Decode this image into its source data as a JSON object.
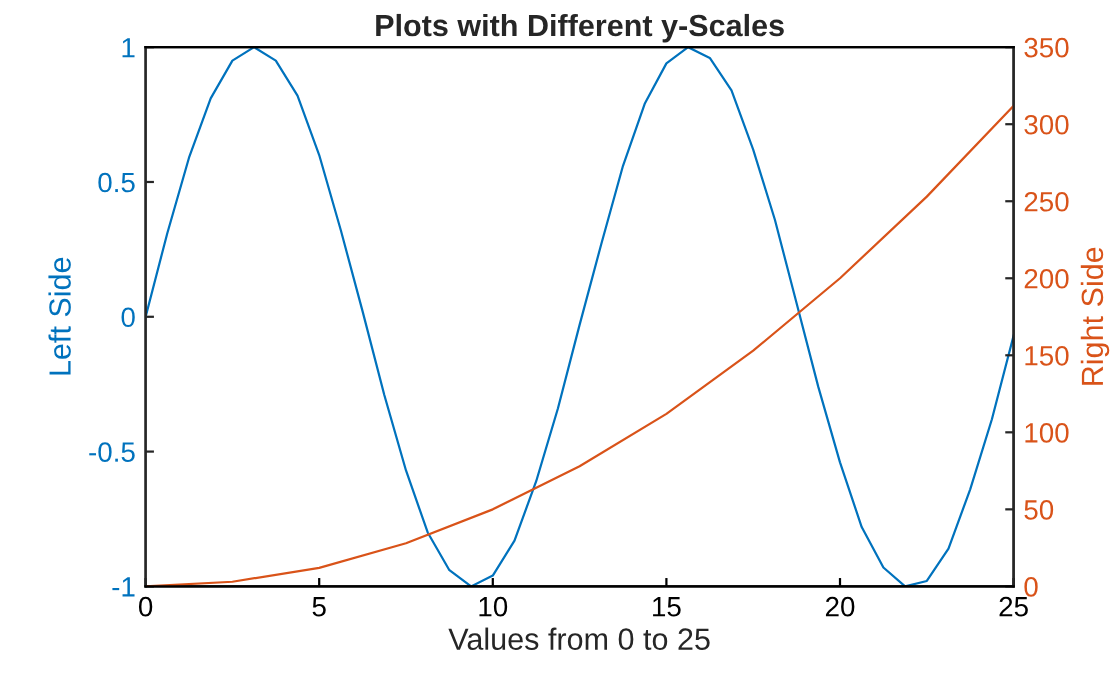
{
  "chart_data": {
    "type": "line",
    "title": "Plots with Different y-Scales",
    "xlabel": "Values from 0 to 25",
    "ylabel": "Left Side",
    "y2label": "Right Side",
    "xlim": [
      0,
      25
    ],
    "xticks": [
      0,
      5,
      10,
      15,
      20,
      25
    ],
    "ylim": [
      -1,
      1
    ],
    "yticks": [
      -1,
      -0.5,
      0,
      0.5,
      1
    ],
    "y2lim": [
      0,
      350
    ],
    "y2ticks": [
      0,
      50,
      100,
      150,
      200,
      250,
      300,
      350
    ],
    "grid": false,
    "legend": false,
    "marker": "none",
    "line_style": "solid",
    "series": [
      {
        "color": "#0072bd",
        "x": [
          0,
          0.625,
          1.25,
          1.875,
          2.5,
          3.125,
          3.75,
          4.375,
          5,
          5.625,
          6.25,
          6.875,
          7.5,
          8.125,
          8.75,
          9.375,
          10,
          10.625,
          11.25,
          11.875,
          12.5,
          13.125,
          13.75,
          14.375,
          15,
          15.625,
          16.25,
          16.875,
          17.5,
          18.125,
          18.75,
          19.375,
          20,
          20.625,
          21.25,
          21.875,
          22.5,
          23.125,
          23.75,
          24.375,
          25
        ],
        "values": [
          0,
          0.31,
          0.59,
          0.81,
          0.95,
          1.0,
          0.95,
          0.82,
          0.6,
          0.32,
          0.02,
          -0.29,
          -0.57,
          -0.8,
          -0.94,
          -1.0,
          -0.96,
          -0.83,
          -0.61,
          -0.34,
          -0.03,
          0.27,
          0.56,
          0.79,
          0.94,
          1.0,
          0.96,
          0.84,
          0.62,
          0.36,
          0.05,
          -0.26,
          -0.54,
          -0.78,
          -0.93,
          -1.0,
          -0.98,
          -0.86,
          -0.64,
          -0.38,
          -0.07
        ]
      },
      {
        "color": "#d95319",
        "axis": "y2",
        "x": [
          0,
          2.5,
          5,
          7.5,
          10,
          12.5,
          15,
          17.5,
          20,
          22.5,
          25
        ],
        "values": [
          0,
          3,
          12,
          28,
          50,
          78,
          112,
          153,
          200,
          253,
          312
        ]
      }
    ]
  }
}
